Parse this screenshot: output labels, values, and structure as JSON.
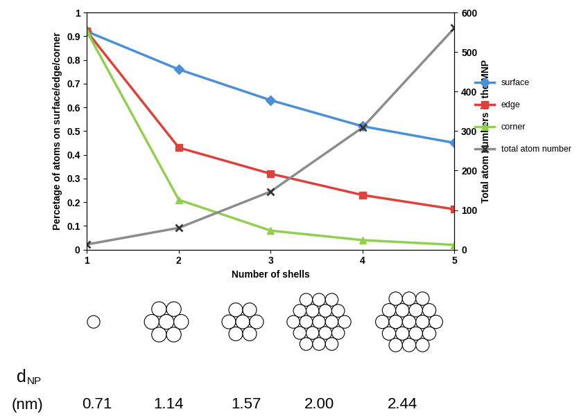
{
  "chart_data": {
    "type": "line",
    "x": [
      1,
      2,
      3,
      4,
      5
    ],
    "x_label": "Number of shells",
    "y_label": "Percetage of atoms on surface/edge/corner",
    "y2_label": "Total atom numbers in the MNP",
    "xlim": [
      1,
      5
    ],
    "xticks": [
      1,
      2,
      3,
      4,
      5
    ],
    "ylim": [
      0,
      1
    ],
    "yticks": [
      0,
      0.1,
      0.2,
      0.3,
      0.4,
      0.5,
      0.6,
      0.7,
      0.8,
      0.9,
      1
    ],
    "y2lim": [
      0,
      600
    ],
    "y2ticks": [
      0,
      100,
      200,
      300,
      400,
      500,
      600
    ],
    "grid": false,
    "legend": "center right",
    "series": [
      {
        "name": "surface",
        "color": "#4a90d9",
        "marker": "diamond",
        "values": [
          0.92,
          0.76,
          0.63,
          0.52,
          0.45
        ]
      },
      {
        "name": "edge",
        "color": "#e0403a",
        "marker": "square",
        "values": [
          0.92,
          0.43,
          0.32,
          0.23,
          0.17
        ]
      },
      {
        "name": "corner",
        "color": "#8fd14f",
        "marker": "triangle",
        "values": [
          0.92,
          0.21,
          0.08,
          0.04,
          0.02
        ]
      },
      {
        "name": "total atom number",
        "color": "#8c8c8c",
        "marker": "x",
        "axis": "y2",
        "values": [
          13,
          55,
          147,
          309,
          561
        ]
      }
    ]
  },
  "size_row": {
    "symbol": "d",
    "subscript": "NP",
    "unit": "(nm)",
    "values": [
      0.71,
      1.14,
      1.57,
      {
        "value": 2.0,
        "label": "2.00"
      },
      2.44
    ]
  }
}
